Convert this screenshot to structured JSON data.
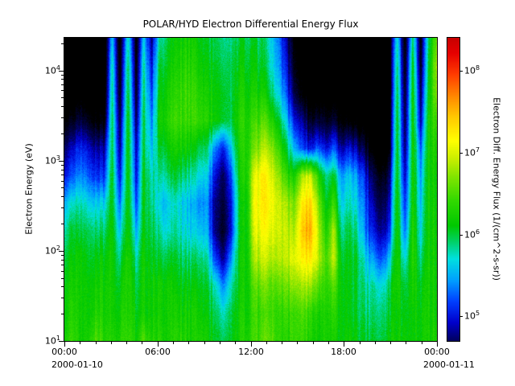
{
  "chart_data": {
    "type": "heatmap",
    "title": "POLAR/HYD  Electron Differential Energy Flux",
    "ylabel": "Electron Energy (eV)",
    "y_scale": "log",
    "y_range_ev": [
      10,
      23000
    ],
    "y_tick_exponents": [
      1,
      2,
      3,
      4
    ],
    "x_range_hours": [
      0,
      24
    ],
    "x_major_tick_hours": [
      0,
      6,
      12,
      18,
      24
    ],
    "x_tick_labels": [
      "00:00",
      "06:00",
      "12:00",
      "18:00",
      "00:00"
    ],
    "x_date_left": "2000-01-10",
    "x_date_right": "2000-01-11",
    "colorbar": {
      "label": "Electron Diff. Energy Flux (1/(cm^2-s-sr))",
      "tick_exponents": [
        8,
        7,
        6,
        5
      ],
      "log10_min": 4.7,
      "log10_max": 8.4,
      "below_min_color": "#000000",
      "colormap_stops": [
        [
          0.0,
          "#000060"
        ],
        [
          0.06,
          "#0000cc"
        ],
        [
          0.13,
          "#0040ff"
        ],
        [
          0.2,
          "#00a0ff"
        ],
        [
          0.27,
          "#00e0e0"
        ],
        [
          0.33,
          "#00d060"
        ],
        [
          0.38,
          "#00c800"
        ],
        [
          0.46,
          "#30d800"
        ],
        [
          0.54,
          "#80e400"
        ],
        [
          0.6,
          "#c8ee00"
        ],
        [
          0.66,
          "#ffff00"
        ],
        [
          0.74,
          "#ffc800"
        ],
        [
          0.8,
          "#ff9000"
        ],
        [
          0.88,
          "#ff3c00"
        ],
        [
          0.95,
          "#e60000"
        ],
        [
          1.0,
          "#c80000"
        ]
      ]
    },
    "grid": {
      "orientation": "rows from highest energy (top) to lowest (bottom); 48 half-hour columns 00:00-24:00; values are log10 flux",
      "values": [
        [
          4.0,
          4.0,
          4.0,
          4.0,
          4.0,
          4.0,
          5.6,
          4.2,
          5.8,
          4.3,
          5.6,
          4.8,
          5.8,
          6.0,
          6.1,
          6.2,
          6.2,
          6.1,
          6.0,
          6.0,
          5.9,
          5.9,
          6.0,
          6.0,
          6.0,
          5.9,
          5.7,
          5.4,
          4.8,
          4.3,
          4.1,
          4.0,
          4.0,
          4.0,
          4.0,
          4.0,
          4.0,
          4.0,
          4.0,
          4.0,
          4.0,
          4.0,
          5.8,
          4.2,
          6.0,
          4.3,
          5.9,
          6.6
        ],
        [
          4.0,
          4.0,
          4.0,
          4.0,
          4.0,
          4.0,
          5.8,
          4.3,
          6.0,
          4.4,
          5.8,
          5.0,
          6.0,
          6.1,
          6.2,
          6.3,
          6.3,
          6.2,
          6.1,
          6.1,
          6.0,
          6.0,
          6.1,
          6.1,
          6.1,
          6.0,
          5.8,
          5.5,
          5.0,
          4.4,
          4.2,
          4.0,
          4.0,
          4.0,
          4.0,
          4.0,
          4.0,
          4.0,
          4.0,
          4.0,
          4.0,
          4.0,
          6.0,
          4.3,
          6.2,
          4.4,
          6.0,
          6.8
        ],
        [
          4.1,
          4.1,
          4.2,
          4.1,
          4.1,
          4.1,
          5.9,
          4.4,
          6.1,
          4.5,
          5.9,
          5.2,
          6.1,
          6.2,
          6.3,
          6.4,
          6.4,
          6.3,
          6.2,
          6.2,
          6.1,
          6.0,
          6.2,
          6.2,
          6.2,
          6.2,
          6.0,
          5.7,
          5.2,
          4.6,
          4.3,
          4.1,
          4.2,
          4.1,
          4.1,
          4.1,
          4.1,
          4.1,
          4.0,
          4.0,
          4.0,
          4.0,
          6.1,
          4.4,
          6.3,
          4.6,
          6.1,
          6.7
        ],
        [
          4.4,
          4.4,
          4.6,
          4.5,
          4.3,
          4.3,
          6.0,
          4.6,
          6.2,
          4.7,
          6.0,
          5.4,
          6.2,
          6.3,
          6.4,
          6.4,
          6.4,
          6.4,
          6.3,
          6.2,
          6.1,
          6.0,
          6.3,
          6.3,
          6.4,
          6.5,
          6.4,
          6.1,
          5.6,
          5.0,
          4.8,
          4.5,
          4.6,
          4.4,
          4.5,
          4.3,
          4.3,
          4.2,
          4.1,
          4.0,
          4.0,
          4.1,
          6.2,
          4.5,
          6.3,
          4.8,
          6.2,
          6.5
        ],
        [
          4.8,
          4.9,
          5.1,
          5.0,
          4.8,
          4.8,
          6.0,
          4.8,
          6.2,
          4.9,
          6.0,
          5.6,
          6.0,
          6.1,
          6.2,
          6.2,
          6.1,
          6.0,
          5.9,
          5.4,
          5.1,
          5.6,
          6.2,
          6.3,
          6.6,
          6.8,
          6.8,
          6.5,
          6.0,
          5.5,
          5.2,
          5.0,
          5.3,
          4.9,
          5.2,
          4.8,
          5.0,
          4.8,
          4.5,
          4.2,
          4.1,
          4.2,
          6.2,
          4.6,
          6.3,
          5.2,
          6.2,
          6.3
        ],
        [
          5.1,
          5.2,
          5.4,
          5.3,
          5.1,
          5.1,
          6.1,
          5.0,
          6.2,
          5.0,
          6.1,
          5.8,
          5.8,
          5.9,
          6.0,
          5.9,
          5.8,
          5.7,
          5.6,
          5.0,
          4.7,
          5.2,
          6.1,
          6.3,
          7.0,
          7.2,
          7.1,
          6.8,
          6.4,
          6.2,
          6.8,
          7.0,
          6.4,
          5.8,
          6.0,
          5.4,
          5.6,
          5.4,
          5.0,
          4.6,
          4.4,
          4.6,
          6.2,
          4.8,
          6.3,
          5.4,
          6.2,
          6.2
        ],
        [
          5.6,
          5.7,
          5.8,
          5.7,
          5.6,
          5.6,
          6.1,
          5.3,
          6.2,
          5.2,
          6.1,
          5.9,
          5.6,
          5.6,
          5.7,
          5.6,
          5.5,
          5.4,
          5.4,
          4.8,
          4.6,
          5.0,
          6.0,
          6.2,
          7.1,
          7.2,
          7.2,
          7.0,
          6.8,
          6.6,
          7.2,
          7.4,
          6.8,
          6.0,
          6.4,
          5.6,
          5.8,
          5.6,
          5.2,
          4.8,
          4.6,
          4.8,
          6.3,
          5.0,
          6.3,
          5.5,
          6.2,
          6.2
        ],
        [
          5.9,
          6.0,
          6.0,
          6.0,
          5.9,
          5.9,
          6.2,
          5.6,
          6.2,
          5.5,
          6.1,
          6.0,
          5.8,
          5.7,
          5.8,
          5.7,
          5.6,
          5.6,
          5.5,
          4.8,
          4.5,
          5.0,
          6.0,
          6.2,
          7.0,
          7.1,
          7.1,
          7.0,
          6.9,
          6.8,
          7.4,
          7.6,
          7.0,
          6.2,
          6.8,
          5.8,
          6.0,
          5.8,
          5.3,
          5.0,
          4.8,
          5.0,
          6.3,
          5.2,
          6.4,
          5.6,
          6.2,
          6.2
        ],
        [
          6.1,
          6.1,
          6.2,
          6.1,
          6.1,
          6.1,
          6.2,
          5.9,
          6.3,
          5.8,
          6.2,
          6.1,
          6.0,
          6.0,
          6.0,
          5.9,
          5.9,
          5.9,
          5.8,
          5.2,
          4.8,
          5.4,
          6.1,
          6.2,
          6.8,
          6.9,
          6.9,
          6.9,
          6.9,
          7.0,
          7.2,
          7.3,
          7.0,
          6.4,
          6.9,
          6.0,
          6.1,
          6.0,
          5.6,
          5.4,
          5.2,
          5.5,
          6.3,
          5.6,
          6.4,
          5.8,
          6.2,
          6.2
        ],
        [
          6.2,
          6.2,
          6.2,
          6.2,
          6.2,
          6.2,
          6.2,
          6.1,
          6.3,
          6.0,
          6.2,
          6.2,
          6.2,
          6.2,
          6.1,
          6.1,
          6.1,
          6.1,
          6.0,
          5.8,
          5.4,
          5.8,
          6.1,
          6.2,
          6.5,
          6.6,
          6.6,
          6.6,
          6.6,
          6.7,
          6.8,
          6.8,
          6.6,
          6.3,
          6.5,
          6.1,
          6.1,
          6.0,
          5.8,
          5.8,
          5.7,
          5.9,
          6.3,
          5.9,
          6.3,
          6.0,
          6.2,
          6.2
        ],
        [
          6.2,
          6.3,
          6.2,
          6.2,
          6.3,
          6.2,
          6.2,
          6.2,
          6.3,
          6.1,
          6.2,
          6.2,
          6.2,
          6.2,
          6.2,
          6.2,
          6.2,
          6.2,
          6.1,
          6.0,
          5.8,
          6.0,
          6.2,
          6.2,
          6.4,
          6.4,
          6.5,
          6.4,
          6.4,
          6.4,
          6.5,
          6.4,
          6.3,
          6.2,
          6.3,
          6.1,
          6.1,
          6.0,
          5.9,
          5.9,
          5.9,
          6.0,
          6.2,
          6.0,
          6.2,
          6.1,
          6.2,
          6.2
        ],
        [
          6.3,
          6.4,
          6.2,
          6.3,
          6.5,
          6.3,
          6.3,
          6.3,
          6.4,
          6.2,
          6.5,
          6.3,
          6.3,
          6.2,
          6.3,
          6.3,
          6.2,
          6.3,
          6.2,
          6.1,
          6.0,
          6.1,
          6.2,
          6.3,
          6.4,
          6.5,
          6.6,
          6.4,
          6.3,
          6.4,
          6.4,
          6.3,
          6.2,
          6.2,
          6.2,
          6.1,
          6.2,
          6.1,
          6.0,
          6.0,
          6.0,
          6.1,
          6.2,
          6.1,
          6.2,
          6.1,
          6.2,
          6.3
        ]
      ]
    }
  }
}
